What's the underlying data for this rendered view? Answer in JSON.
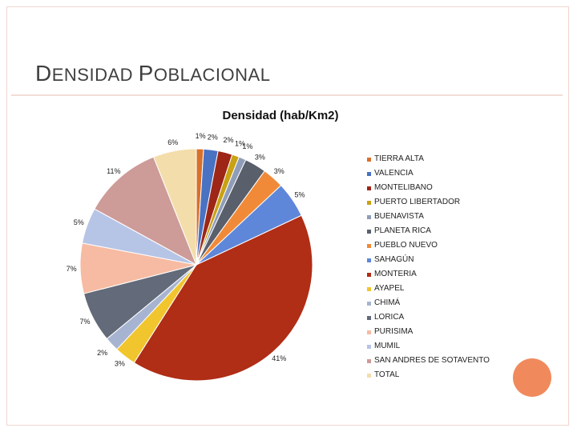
{
  "slide": {
    "title_cap_1": "D",
    "title_rest_1": "ENSIDAD ",
    "title_cap_2": "P",
    "title_rest_2": "OBLACIONAL"
  },
  "chart_data": {
    "type": "pie",
    "title": "Densidad (hab/Km2)",
    "categories": [
      "TIERRA ALTA",
      "VALENCIA",
      "MONTELIBANO",
      "PUERTO LIBERTADOR",
      "BUENAVISTA",
      "PLANETA RICA",
      "PUEBLO NUEVO",
      "SAHAGÚN",
      "MONTERIA",
      "AYAPEL",
      "CHIMÁ",
      "LORICA",
      "PURISIMA",
      "MUMIL",
      "SAN ANDRES DE SOTAVENTO",
      "TOTAL"
    ],
    "values": [
      1,
      2,
      2,
      1,
      1,
      3,
      3,
      5,
      41,
      3,
      2,
      7,
      7,
      5,
      11,
      6
    ],
    "labels": [
      "1%",
      "2%",
      "2%",
      "1%",
      "1%",
      "3%",
      "3%",
      "5%",
      "41%",
      "3%",
      "2%",
      "7%",
      "7%",
      "5%",
      "11%",
      "6%"
    ],
    "colors": [
      "#d8702a",
      "#4a72c2",
      "#9d2617",
      "#c9a214",
      "#8f9db9",
      "#595f6b",
      "#f08a38",
      "#5f87d9",
      "#b02d16",
      "#f1c52e",
      "#a7b4d1",
      "#636a79",
      "#f6bba2",
      "#b6c4e6",
      "#cd9b98",
      "#f3ddaa"
    ],
    "legend_position": "right"
  }
}
